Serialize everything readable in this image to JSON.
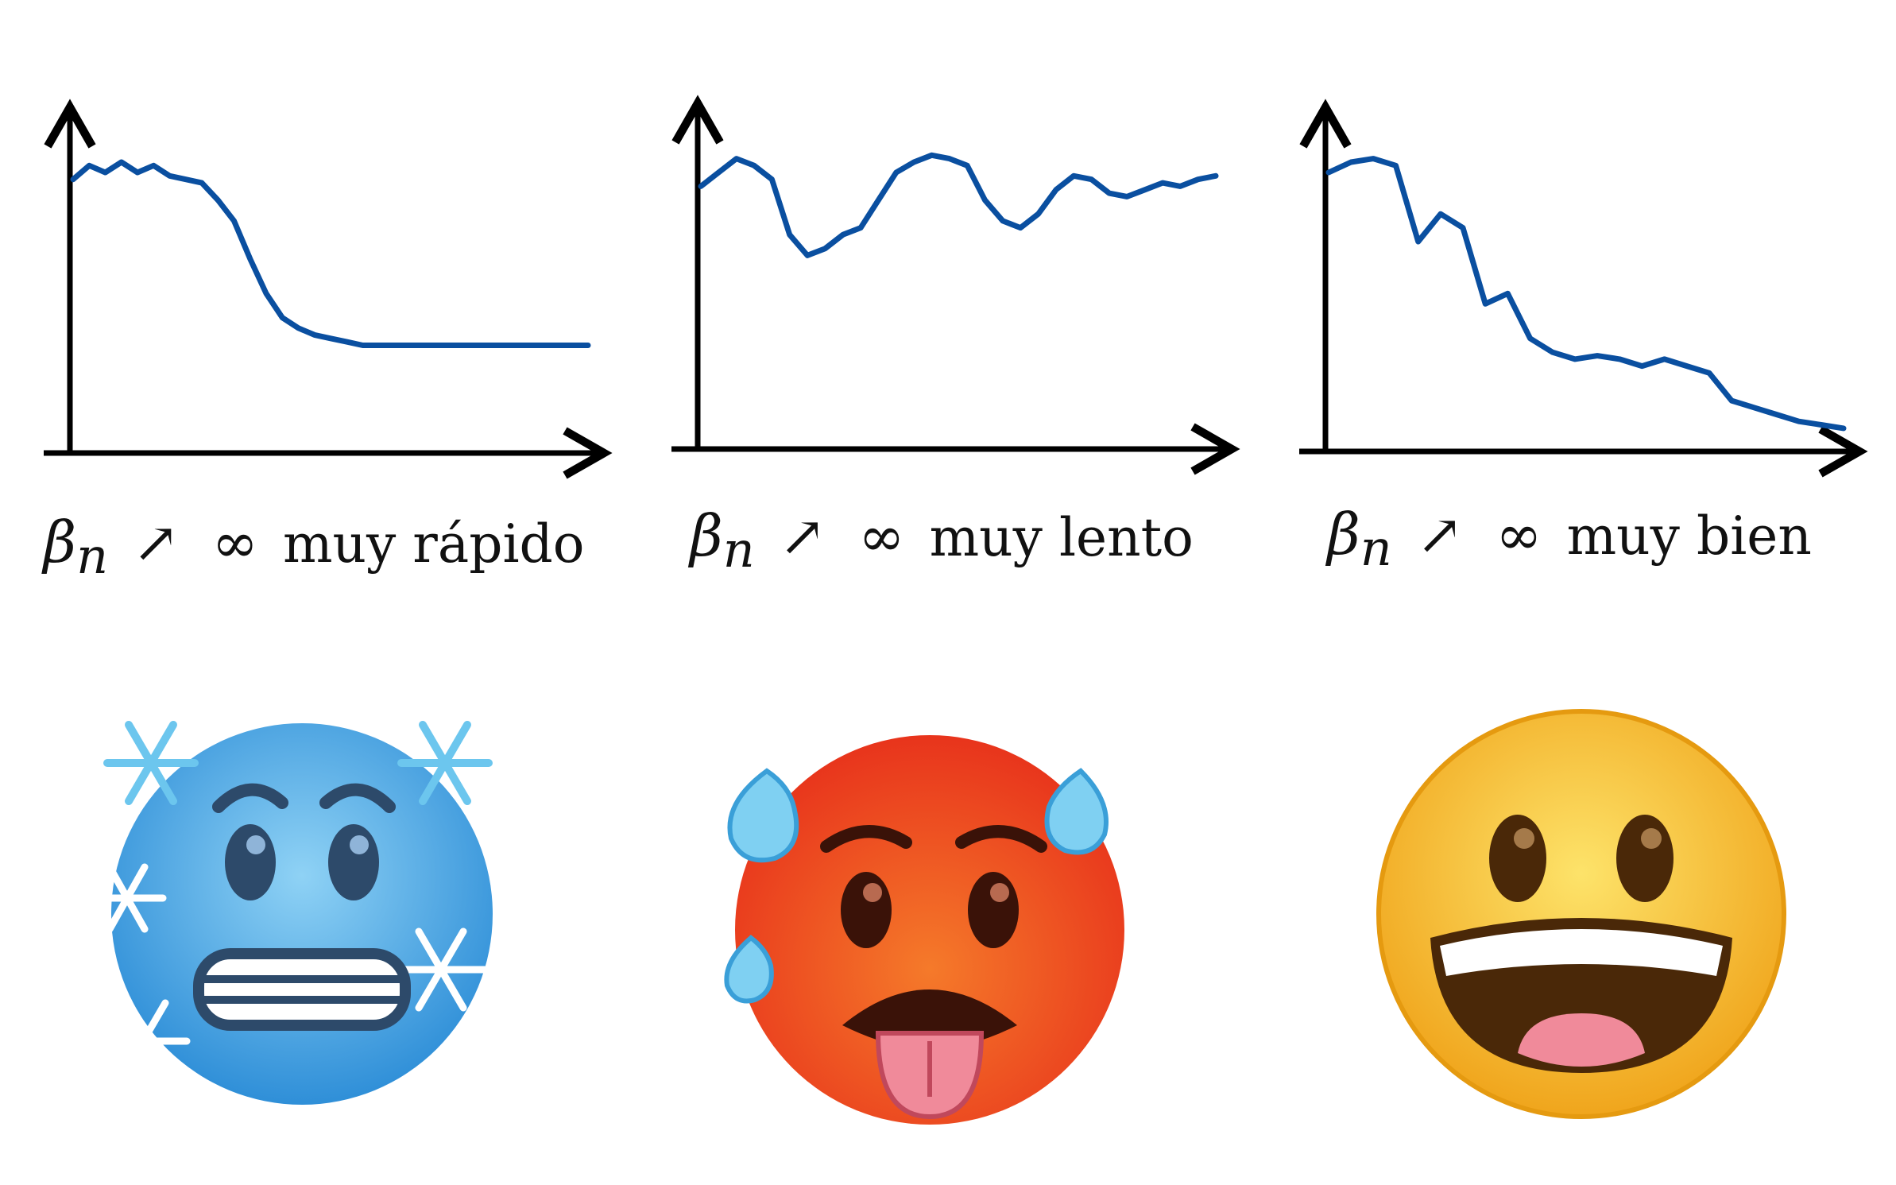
{
  "colors": {
    "curve": "#0a4fa0",
    "axis": "#000000",
    "cold_face": "#4aa4e6",
    "hot_face": "#f0501e",
    "happy_face": "#f6c22b"
  },
  "panels": [
    {
      "caption": {
        "beta": "β",
        "sub": "n",
        "arrow": "↗",
        "infinity": "∞",
        "text": "muy rápido"
      },
      "emoji": "cold-face-icon",
      "chart_data": {
        "type": "line",
        "y": [
          0.78,
          0.82,
          0.8,
          0.83,
          0.8,
          0.82,
          0.79,
          0.78,
          0.77,
          0.72,
          0.66,
          0.55,
          0.45,
          0.38,
          0.35,
          0.33,
          0.32,
          0.31,
          0.3,
          0.3,
          0.3,
          0.3,
          0.3,
          0.3,
          0.3,
          0.3,
          0.3,
          0.3,
          0.3,
          0.3,
          0.3,
          0.3,
          0.3
        ]
      }
    },
    {
      "caption": {
        "beta": "β",
        "sub": "n",
        "arrow": "↗",
        "infinity": "∞",
        "text": "muy lento"
      },
      "emoji": "hot-face-icon",
      "chart_data": {
        "type": "line",
        "y": [
          0.76,
          0.8,
          0.84,
          0.82,
          0.78,
          0.62,
          0.56,
          0.58,
          0.62,
          0.64,
          0.72,
          0.8,
          0.83,
          0.85,
          0.84,
          0.82,
          0.72,
          0.66,
          0.64,
          0.68,
          0.75,
          0.79,
          0.78,
          0.74,
          0.73,
          0.75,
          0.77,
          0.76,
          0.78,
          0.79
        ]
      }
    },
    {
      "caption": {
        "beta": "β",
        "sub": "n",
        "arrow": "↗",
        "infinity": "∞",
        "text": "muy bien"
      },
      "emoji": "grinning-face-icon",
      "chart_data": {
        "type": "line",
        "y": [
          0.8,
          0.83,
          0.84,
          0.82,
          0.6,
          0.68,
          0.64,
          0.42,
          0.45,
          0.32,
          0.28,
          0.26,
          0.27,
          0.26,
          0.24,
          0.26,
          0.24,
          0.22,
          0.14,
          0.12,
          0.1,
          0.08,
          0.07,
          0.06
        ]
      }
    }
  ]
}
